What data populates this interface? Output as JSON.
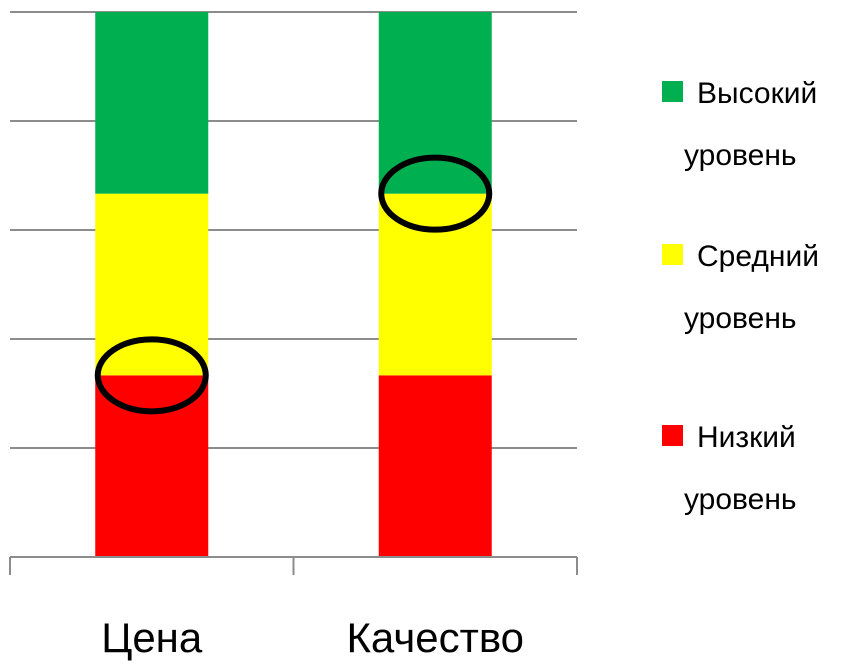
{
  "chart_data": {
    "type": "bar",
    "stacked": true,
    "categories": [
      "Цена",
      "Качество"
    ],
    "series": [
      {
        "name": "Низкий уровень",
        "values": [
          1,
          1
        ],
        "color": "#ff0000"
      },
      {
        "name": "Средний уровень",
        "values": [
          1,
          1
        ],
        "color": "#ffff00"
      },
      {
        "name": "Высокий уровень",
        "values": [
          1,
          1
        ],
        "color": "#00b050"
      }
    ],
    "ylim": [
      0,
      3
    ],
    "grid": true,
    "legend_position": "right",
    "legend": [
      {
        "lines": [
          "Высокий",
          "уровень"
        ],
        "color": "#00b050"
      },
      {
        "lines": [
          "Средний",
          "уровень"
        ],
        "color": "#ffff00"
      },
      {
        "lines": [
          "Низкий",
          "уровень"
        ],
        "color": "#ff0000"
      }
    ],
    "highlights": [
      {
        "category": "Цена",
        "value": 1
      },
      {
        "category": "Качество",
        "value": 2
      }
    ]
  }
}
